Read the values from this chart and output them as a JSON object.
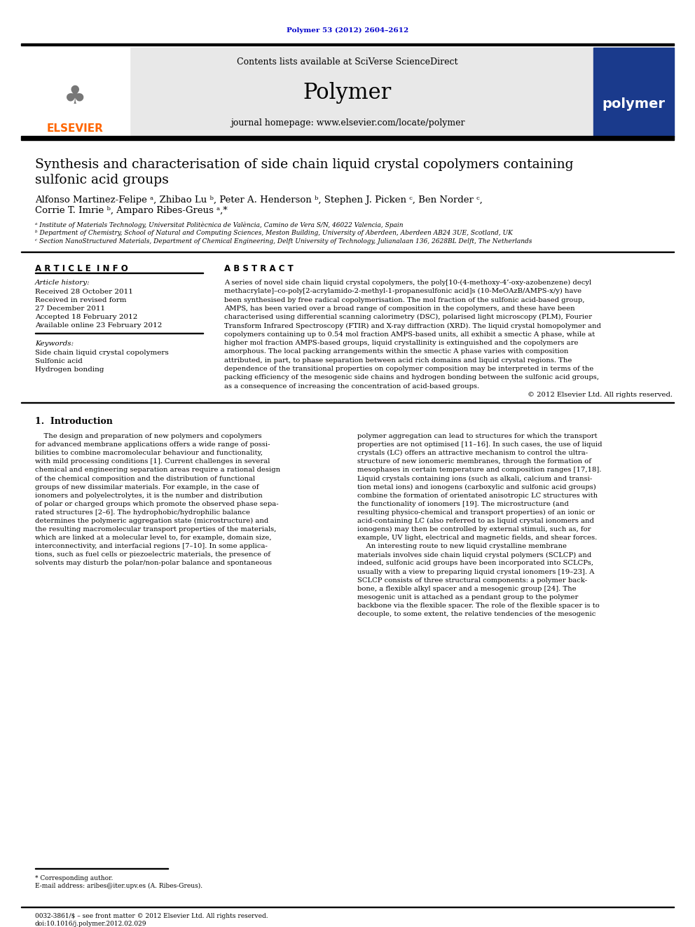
{
  "journal_ref": "Polymer 53 (2012) 2604–2612",
  "journal_ref_color": "#0000cc",
  "contents_line": "Contents lists available at SciVerse ScienceDirect",
  "journal_name": "Polymer",
  "journal_homepage": "journal homepage: www.elsevier.com/locate/polymer",
  "header_bg": "#e8e8e8",
  "paper_title_line1": "Synthesis and characterisation of side chain liquid crystal copolymers containing",
  "paper_title_line2": "sulfonic acid groups",
  "authors_line1": "Alfonso Martinez-Felipe ᵃ, Zhibao Lu ᵇ, Peter A. Henderson ᵇ, Stephen J. Picken ᶜ, Ben Norder ᶜ,",
  "authors_line2": "Corrie T. Imrie ᵇ, Amparo Ribes-Greus ᵃ,*",
  "affil_a": "ᵃ Institute of Materials Technology, Universitat Politècnica de València, Camino de Vera S/N, 46022 Valencia, Spain",
  "affil_b": "ᵇ Department of Chemistry, School of Natural and Computing Sciences, Meston Building, University of Aberdeen, Aberdeen AB24 3UE, Scotland, UK",
  "affil_c": "ᶜ Section NanoStructured Materials, Department of Chemical Engineering, Delft University of Technology, Julianalaan 136, 2628BL Delft, The Netherlands",
  "article_info_title": "A R T I C L E  I N F O",
  "abstract_title": "A B S T R A C T",
  "article_history_label": "Article history:",
  "received": "Received 28 October 2011",
  "received_revised1": "Received in revised form",
  "received_revised2": "27 December 2011",
  "accepted": "Accepted 18 February 2012",
  "available": "Available online 23 February 2012",
  "keywords_label": "Keywords:",
  "keyword1": "Side chain liquid crystal copolymers",
  "keyword2": "Sulfonic acid",
  "keyword3": "Hydrogen bonding",
  "abstract_lines": [
    "A series of novel side chain liquid crystal copolymers, the poly[10-(4-methoxy-4’-oxy-azobenzene) decyl",
    "methacrylate]–co-poly[2-acrylamido-2-methyl-1-propanesulfonic acid]s (10-MeOAzB/AMPS-x/y) have",
    "been synthesised by free radical copolymerisation. The mol fraction of the sulfonic acid-based group,",
    "AMPS, has been varied over a broad range of composition in the copolymers, and these have been",
    "characterised using differential scanning calorimetry (DSC), polarised light microscopy (PLM), Fourier",
    "Transform Infrared Spectroscopy (FTIR) and X-ray diffraction (XRD). The liquid crystal homopolymer and",
    "copolymers containing up to 0.54 mol fraction AMPS-based units, all exhibit a smectic A phase, while at",
    "higher mol fraction AMPS-based groups, liquid crystallinity is extinguished and the copolymers are",
    "amorphous. The local packing arrangements within the smectic A phase varies with composition",
    "attributed, in part, to phase separation between acid rich domains and liquid crystal regions. The",
    "dependence of the transitional properties on copolymer composition may be interpreted in terms of the",
    "packing efficiency of the mesogenic side chains and hydrogen bonding between the sulfonic acid groups,",
    "as a consequence of increasing the concentration of acid-based groups.",
    "© 2012 Elsevier Ltd. All rights reserved."
  ],
  "intro_title": "1.  Introduction",
  "intro_col1_lines": [
    "    The design and preparation of new polymers and copolymers",
    "for advanced membrane applications offers a wide range of possi-",
    "bilities to combine macromolecular behaviour and functionality,",
    "with mild processing conditions [1]. Current challenges in several",
    "chemical and engineering separation areas require a rational design",
    "of the chemical composition and the distribution of functional",
    "groups of new dissimilar materials. For example, in the case of",
    "ionomers and polyelectrolytes, it is the number and distribution",
    "of polar or charged groups which promote the observed phase sepa-",
    "rated structures [2–6]. The hydrophobic/hydrophilic balance",
    "determines the polymeric aggregation state (microstructure) and",
    "the resulting macromolecular transport properties of the materials,",
    "which are linked at a molecular level to, for example, domain size,",
    "interconnectivity, and interfacial regions [7–10]. In some applica-",
    "tions, such as fuel cells or piezoelectric materials, the presence of",
    "solvents may disturb the polar/non-polar balance and spontaneous"
  ],
  "intro_col2_lines": [
    "polymer aggregation can lead to structures for which the transport",
    "properties are not optimised [11–16]. In such cases, the use of liquid",
    "crystals (LC) offers an attractive mechanism to control the ultra-",
    "structure of new ionomeric membranes, through the formation of",
    "mesophases in certain temperature and composition ranges [17,18].",
    "Liquid crystals containing ions (such as alkali, calcium and transi-",
    "tion metal ions) and ionogens (carboxylic and sulfonic acid groups)",
    "combine the formation of orientated anisotropic LC structures with",
    "the functionality of ionomers [19]. The microstructure (and",
    "resulting physico-chemical and transport properties) of an ionic or",
    "acid-containing LC (also referred to as liquid crystal ionomers and",
    "ionogens) may then be controlled by external stimuli, such as, for",
    "example, UV light, electrical and magnetic fields, and shear forces.",
    "    An interesting route to new liquid crystalline membrane",
    "materials involves side chain liquid crystal polymers (SCLCP) and",
    "indeed, sulfonic acid groups have been incorporated into SCLCPs,",
    "usually with a view to preparing liquid crystal ionomers [19–23]. A",
    "SCLCP consists of three structural components: a polymer back-",
    "bone, a flexible alkyl spacer and a mesogenic group [24]. The",
    "mesogenic unit is attached as a pendant group to the polymer",
    "backbone via the flexible spacer. The role of the flexible spacer is to",
    "decouple, to some extent, the relative tendencies of the mesogenic"
  ],
  "footnote1": "* Corresponding author.",
  "footnote2": "E-mail address: aribes@iter.upv.es (A. Ribes-Greus).",
  "footer1": "0032-3861/$ – see front matter © 2012 Elsevier Ltd. All rights reserved.",
  "footer2": "doi:10.1016/j.polymer.2012.02.029",
  "bg_color": "#ffffff",
  "title_font_size": 13.5,
  "body_font_size": 7.2,
  "small_font_size": 6.5,
  "section_header_font_size": 8.5,
  "author_font_size": 9.5,
  "intro_title_font_size": 9.0,
  "journal_title_font_size": 22
}
